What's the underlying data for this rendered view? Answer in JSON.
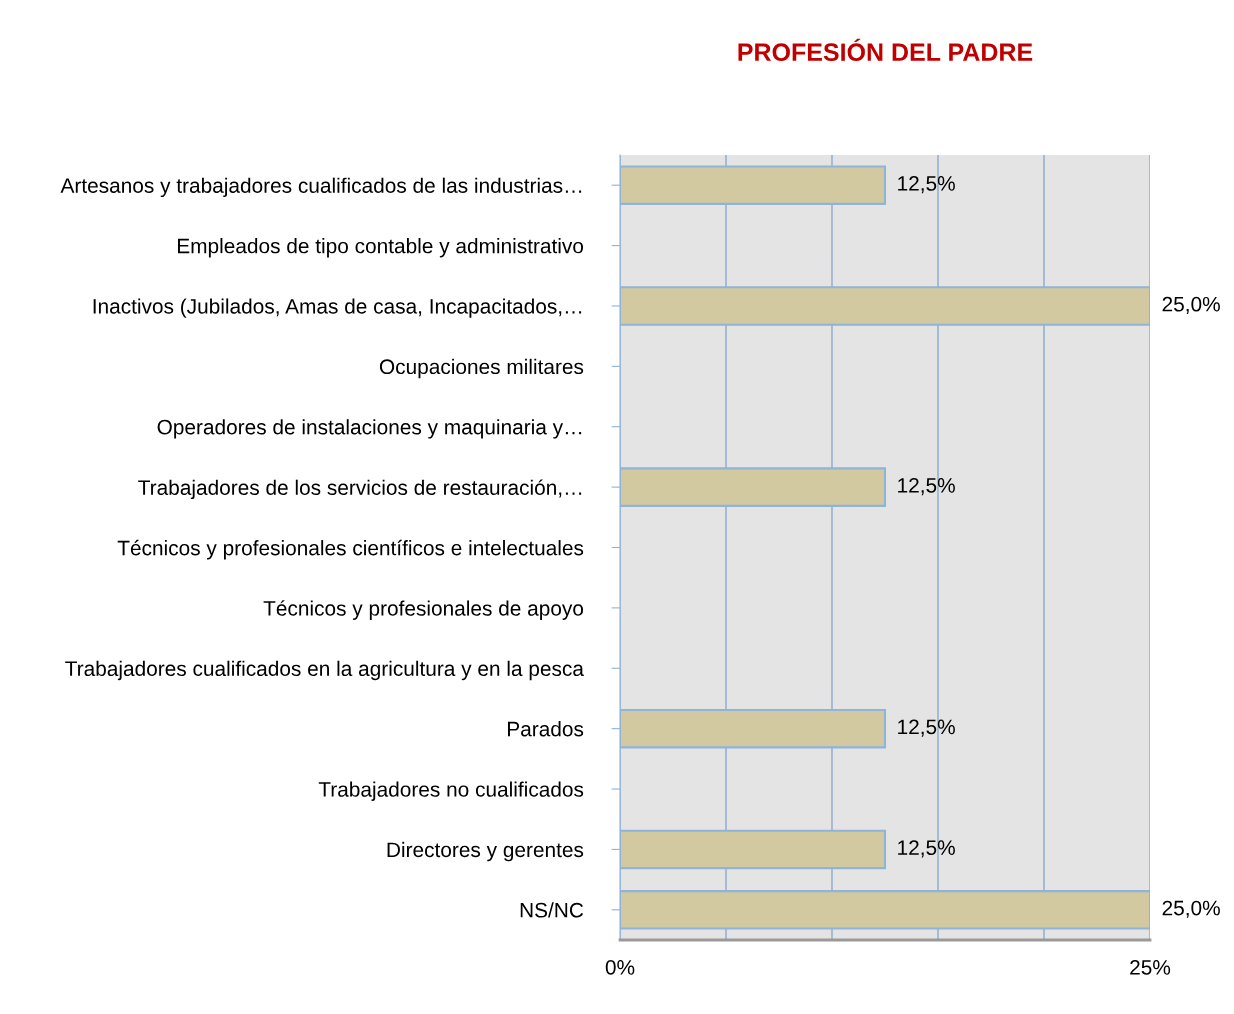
{
  "chart_data": {
    "type": "bar",
    "orientation": "horizontal",
    "title": "PROFESIÓN DEL PADRE",
    "categories": [
      "Artesanos y trabajadores cualificados de las industrias…",
      "Empleados de tipo contable y administrativo",
      "Inactivos (Jubilados, Amas de casa, Incapacitados,…",
      "Ocupaciones militares",
      "Operadores de instalaciones y maquinaria y…",
      "Trabajadores de los servicios de restauración,…",
      "Técnicos y profesionales científicos e intelectuales",
      "Técnicos y profesionales de apoyo",
      "Trabajadores cualificados en la agricultura y en la pesca",
      "Parados",
      "Trabajadores no cualificados",
      "Directores y gerentes",
      "NS/NC"
    ],
    "values": [
      12.5,
      0,
      25,
      0,
      0,
      12.5,
      0,
      0,
      0,
      12.5,
      0,
      12.5,
      25
    ],
    "value_labels": [
      "12,5%",
      null,
      "25,0%",
      null,
      null,
      "12,5%",
      null,
      null,
      null,
      "12,5%",
      null,
      "12,5%",
      "25,0%"
    ],
    "color": "#d3c9a1",
    "xlim": [
      0,
      25
    ],
    "xticks": [
      {
        "value": 0,
        "label": "0%"
      },
      {
        "value": 5,
        "label": null
      },
      {
        "value": 10,
        "label": null
      },
      {
        "value": 15,
        "label": null
      },
      {
        "value": 20,
        "label": null
      },
      {
        "value": 25,
        "label": "25%"
      }
    ],
    "grid": "x",
    "legend": false
  }
}
